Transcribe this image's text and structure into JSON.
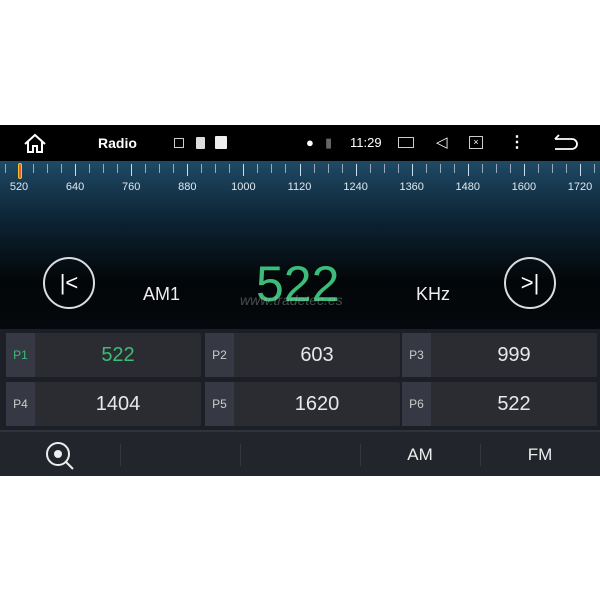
{
  "status_bar": {
    "app_title": "Radio",
    "time": "11:29",
    "icons": [
      "home-icon",
      "image-icon",
      "sd-card-icon",
      "storage-icon",
      "location-icon",
      "no-sim-icon",
      "camera-icon",
      "volume-icon",
      "screen-close-icon",
      "more-icon",
      "back-icon"
    ]
  },
  "scale": {
    "labels": [
      "520",
      "640",
      "760",
      "880",
      "1000",
      "1120",
      "1240",
      "1360",
      "1480",
      "1600",
      "1720"
    ],
    "current": 522
  },
  "tuner": {
    "band": "AM1",
    "frequency": "522",
    "unit": "KHz",
    "watermark": "www.tradetec.es",
    "accent": "#3dbb78"
  },
  "presets": [
    {
      "label": "P1",
      "value": "522",
      "active": true
    },
    {
      "label": "P2",
      "value": "603"
    },
    {
      "label": "P3",
      "value": "999"
    },
    {
      "label": "P4",
      "value": "1404"
    },
    {
      "label": "P5",
      "value": "1620"
    },
    {
      "label": "P6",
      "value": "522"
    }
  ],
  "bottom_bar": {
    "am": "AM",
    "fm": "FM"
  }
}
